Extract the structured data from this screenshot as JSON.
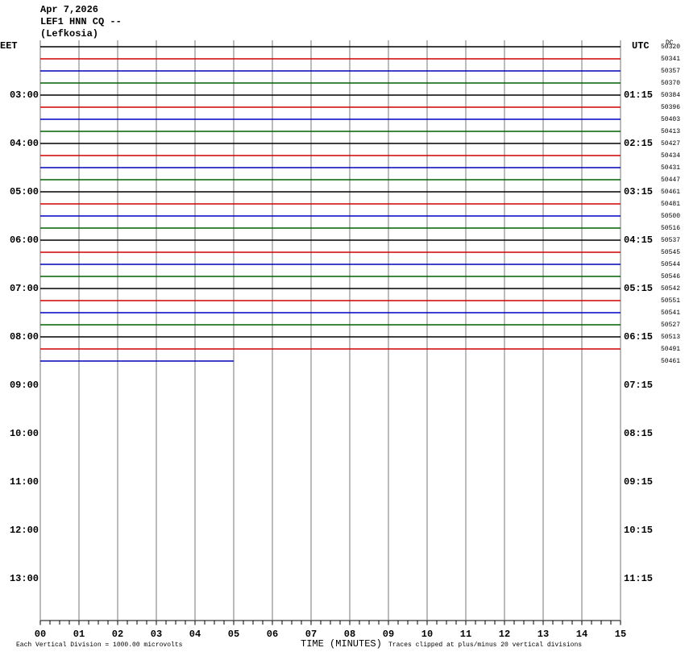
{
  "header": {
    "date": "Apr 7,2026",
    "station": "LEF1 HNN CQ --",
    "location": "(Lefkosia)"
  },
  "left_zone": "EET",
  "right_zone": "UTC",
  "dc_heading": "DC",
  "left_times": [
    "03:00",
    "04:00",
    "05:00",
    "06:00",
    "07:00",
    "08:00",
    "09:00",
    "10:00",
    "11:00",
    "12:00",
    "13:00"
  ],
  "right_times": [
    "01:15",
    "02:15",
    "03:15",
    "04:15",
    "05:15",
    "06:15",
    "07:15",
    "08:15",
    "09:15",
    "10:15",
    "11:15"
  ],
  "trace_colors": [
    "#000000",
    "#d00000",
    "#0000c0",
    "#006000"
  ],
  "dc_offsets": [
    "50320",
    "50341",
    "50357",
    "50370",
    "50384",
    "50396",
    "50403",
    "50413",
    "50427",
    "50434",
    "50431",
    "50447",
    "50461",
    "50481",
    "50500",
    "50516",
    "50537",
    "50545",
    "50544",
    "50546",
    "50542",
    "50551",
    "50541",
    "50527",
    "50513",
    "50491",
    "50461"
  ],
  "x_ticks": [
    "00",
    "01",
    "02",
    "03",
    "04",
    "05",
    "06",
    "07",
    "08",
    "09",
    "10",
    "11",
    "12",
    "13",
    "14",
    "15"
  ],
  "footer": {
    "scale": "Each Vertical Division = 1000.00 microvolts",
    "axis_title": "TIME (MINUTES)",
    "clip_note": "Traces clipped at plus/minus 20 vertical divisions"
  }
}
